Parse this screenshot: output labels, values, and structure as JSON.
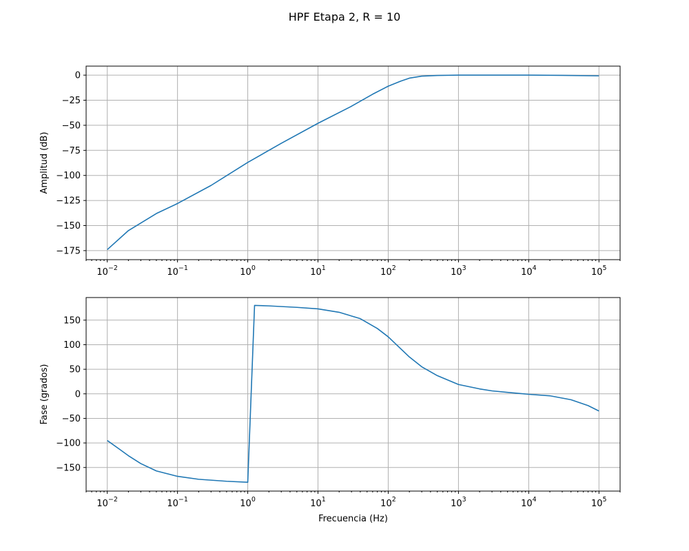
{
  "figure": {
    "title": "HPF Etapa 2, R = 10"
  },
  "chart_data": [
    {
      "type": "line",
      "xscale": "log",
      "xlabel": "",
      "ylabel": "Amplitud (dB)",
      "xlim": [
        0.005,
        200000
      ],
      "ylim": [
        -184,
        9
      ],
      "xticks": [
        {
          "value": 0.01,
          "base": "10",
          "exp": "−2"
        },
        {
          "value": 0.1,
          "base": "10",
          "exp": "−1"
        },
        {
          "value": 1,
          "base": "10",
          "exp": "0"
        },
        {
          "value": 10,
          "base": "10",
          "exp": "1"
        },
        {
          "value": 100,
          "base": "10",
          "exp": "2"
        },
        {
          "value": 1000,
          "base": "10",
          "exp": "3"
        },
        {
          "value": 10000,
          "base": "10",
          "exp": "4"
        },
        {
          "value": 100000,
          "base": "10",
          "exp": "5"
        }
      ],
      "yticks": [
        {
          "value": 0,
          "label": "0"
        },
        {
          "value": -25,
          "label": "−25"
        },
        {
          "value": -50,
          "label": "−50"
        },
        {
          "value": -75,
          "label": "−75"
        },
        {
          "value": -100,
          "label": "−100"
        },
        {
          "value": -125,
          "label": "−125"
        },
        {
          "value": -150,
          "label": "−150"
        },
        {
          "value": -175,
          "label": "−175"
        }
      ],
      "grid": true,
      "series": [
        {
          "color": "#1f77b4",
          "x": [
            0.01,
            0.02,
            0.05,
            0.1,
            0.3,
            1,
            3,
            10,
            30,
            60,
            100,
            150,
            200,
            300,
            500,
            1000,
            3000,
            10000,
            30000,
            100000
          ],
          "y": [
            -174,
            -155,
            -138,
            -128,
            -110,
            -87,
            -68,
            -48,
            -31,
            -19,
            -11,
            -6,
            -3,
            -1,
            -0.3,
            0,
            0,
            0,
            -0.2,
            -0.7
          ]
        }
      ]
    },
    {
      "type": "line",
      "xscale": "log",
      "xlabel": "Frecuencia (Hz)",
      "ylabel": "Fase (grados)",
      "xlim": [
        0.005,
        200000
      ],
      "ylim": [
        -198,
        196
      ],
      "xticks": [
        {
          "value": 0.01,
          "base": "10",
          "exp": "−2"
        },
        {
          "value": 0.1,
          "base": "10",
          "exp": "−1"
        },
        {
          "value": 1,
          "base": "10",
          "exp": "0"
        },
        {
          "value": 10,
          "base": "10",
          "exp": "1"
        },
        {
          "value": 100,
          "base": "10",
          "exp": "2"
        },
        {
          "value": 1000,
          "base": "10",
          "exp": "3"
        },
        {
          "value": 10000,
          "base": "10",
          "exp": "4"
        },
        {
          "value": 100000,
          "base": "10",
          "exp": "5"
        }
      ],
      "yticks": [
        {
          "value": 150,
          "label": "150"
        },
        {
          "value": 100,
          "label": "100"
        },
        {
          "value": 50,
          "label": "50"
        },
        {
          "value": 0,
          "label": "0"
        },
        {
          "value": -50,
          "label": "−50"
        },
        {
          "value": -100,
          "label": "−100"
        },
        {
          "value": -150,
          "label": "−150"
        }
      ],
      "grid": true,
      "series": [
        {
          "color": "#1f77b4",
          "x": [
            0.01,
            0.015,
            0.02,
            0.03,
            0.05,
            0.1,
            0.2,
            0.5,
            1,
            1.25,
            2,
            5,
            10,
            20,
            40,
            70,
            100,
            150,
            200,
            300,
            500,
            1000,
            2000,
            3000,
            5000,
            10000,
            20000,
            40000,
            70000,
            100000
          ],
          "y": [
            -95,
            -113,
            -126,
            -142,
            -157,
            -168,
            -174,
            -178,
            -180,
            180,
            179,
            176,
            173,
            166,
            153,
            133,
            116,
            92,
            75,
            55,
            37,
            19,
            10,
            6,
            3,
            -1,
            -4,
            -12,
            -24,
            -35
          ]
        }
      ]
    }
  ]
}
